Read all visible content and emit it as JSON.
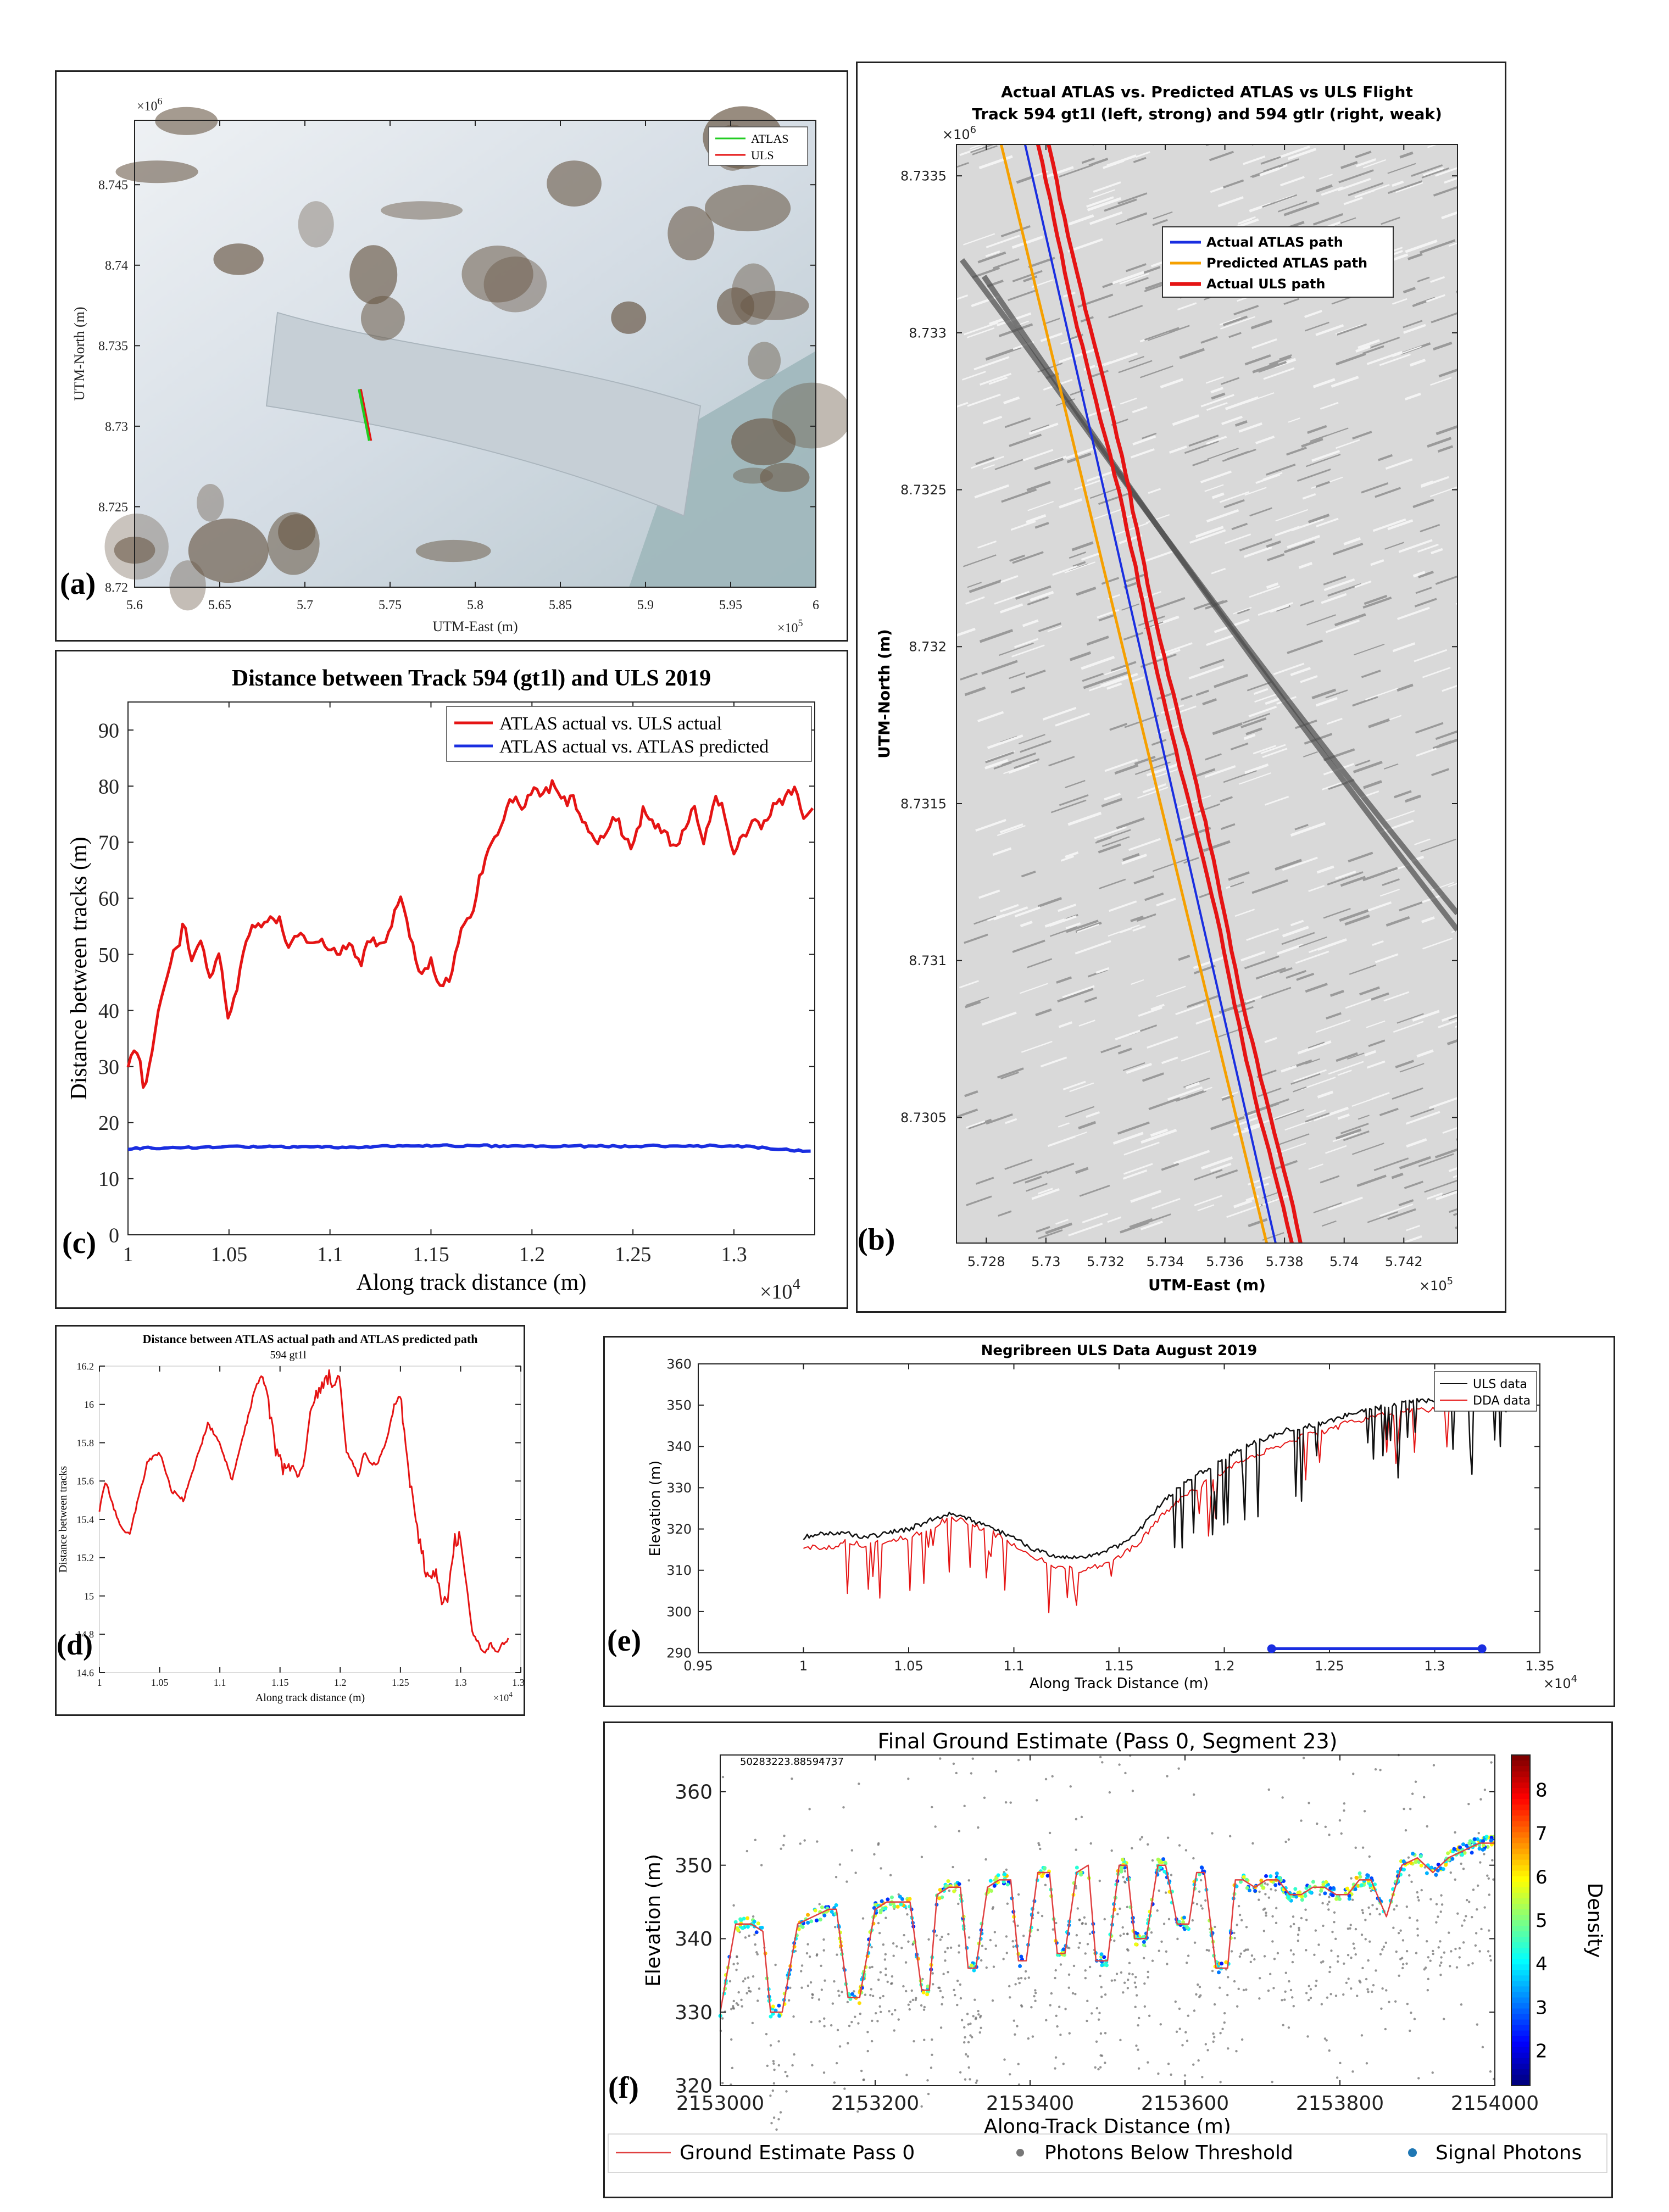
{
  "panel_labels": {
    "a": "(a)",
    "b": "(b)",
    "c": "(c)",
    "d": "(d)",
    "e": "(e)",
    "f": "(f)"
  },
  "colors": {
    "red": "#e51414",
    "blue": "#1a2ee0",
    "orange": "#f5a000",
    "green": "#22cc22",
    "black": "#111111"
  },
  "chart_data": [
    {
      "id": "a",
      "type": "map",
      "xlabel": "UTM-East (m)",
      "ylabel": "UTM-North (m)",
      "xexp": "×10",
      "xexp_power": "5",
      "yexp": "×10",
      "yexp_power": "6",
      "xlim": [
        5.6,
        6.0
      ],
      "ylim": [
        8.72,
        8.749
      ],
      "xticks": [
        "5.6",
        "5.65",
        "5.7",
        "5.75",
        "5.8",
        "5.85",
        "5.9",
        "5.95",
        "6"
      ],
      "yticks": [
        "8.72",
        "8.725",
        "8.73",
        "8.735",
        "8.74",
        "8.745"
      ],
      "ytick_vals": [
        8.72,
        8.725,
        8.73,
        8.735,
        8.74,
        8.745
      ],
      "legend": [
        "ATLAS",
        "ULS"
      ],
      "track": {
        "x": [
          5.732,
          5.738
        ],
        "y": [
          8.7323,
          8.7291
        ]
      }
    },
    {
      "id": "b",
      "type": "map",
      "title_lines": [
        "Actual ATLAS vs. Predicted ATLAS vs ULS Flight",
        "Track 594 gt1l (left, strong) and 594 gtlr (right, weak)"
      ],
      "xlabel": "UTM-East (m)",
      "ylabel": "UTM-North (m)",
      "xexp": "×10",
      "xexp_power": "5",
      "yexp": "×10",
      "yexp_power": "6",
      "xlim": [
        5.727,
        5.7438
      ],
      "ylim": [
        8.7301,
        8.7336
      ],
      "xticks": [
        "5.728",
        "5.73",
        "5.732",
        "5.734",
        "5.736",
        "5.738",
        "5.74",
        "5.742"
      ],
      "xtick_vals": [
        5.728,
        5.73,
        5.732,
        5.734,
        5.736,
        5.738,
        5.74,
        5.742
      ],
      "yticks": [
        "8.7305",
        "8.731",
        "8.7315",
        "8.732",
        "8.7325",
        "8.733",
        "8.7335"
      ],
      "ytick_vals": [
        8.7305,
        8.731,
        8.7315,
        8.732,
        8.7325,
        8.733,
        8.7335
      ],
      "legend": [
        "Actual ATLAS path",
        "Predicted ATLAS path",
        "Actual ULS path"
      ],
      "series": [
        {
          "name": "Predicted ATLAS path",
          "x0": 5.7285,
          "y0": 8.7336,
          "x1": 5.7374,
          "y1": 8.7301
        },
        {
          "name": "Actual ATLAS path",
          "x0": 5.7293,
          "y0": 8.7336,
          "x1": 5.7377,
          "y1": 8.7301
        },
        {
          "name": "Actual ULS path",
          "x0": 5.7297,
          "y0": 8.7336,
          "x1": 5.7382,
          "y1": 8.7301
        },
        {
          "name": "Actual ULS path",
          "x0": 5.7301,
          "y0": 8.7336,
          "x1": 5.7385,
          "y1": 8.7301
        }
      ]
    },
    {
      "id": "c",
      "type": "line",
      "title": "Distance between Track 594 (gt1l) and ULS 2019",
      "xlabel": "Along track distance (m)",
      "ylabel": "Distance between tracks (m)",
      "xexp": "×10",
      "xexp_power": "4",
      "xlim": [
        1.0,
        1.34
      ],
      "ylim": [
        0,
        95
      ],
      "xticks": [
        "1",
        "1.05",
        "1.1",
        "1.15",
        "1.2",
        "1.25",
        "1.3"
      ],
      "xtick_vals": [
        1.0,
        1.05,
        1.1,
        1.15,
        1.2,
        1.25,
        1.3
      ],
      "yticks": [
        "0",
        "10",
        "20",
        "30",
        "40",
        "50",
        "60",
        "70",
        "80",
        "90"
      ],
      "ytick_vals": [
        0,
        10,
        20,
        30,
        40,
        50,
        60,
        70,
        80,
        90
      ],
      "series": [
        {
          "name": "ATLAS actual vs. ULS actual",
          "x": [
            1.0,
            1.005,
            1.008,
            1.012,
            1.018,
            1.022,
            1.026,
            1.028,
            1.032,
            1.036,
            1.04,
            1.045,
            1.05,
            1.055,
            1.06,
            1.065,
            1.07,
            1.075,
            1.08,
            1.085,
            1.09,
            1.095,
            1.1,
            1.105,
            1.11,
            1.115,
            1.12,
            1.125,
            1.13,
            1.135,
            1.14,
            1.145,
            1.15,
            1.155,
            1.16,
            1.165,
            1.17,
            1.175,
            1.18,
            1.185,
            1.19,
            1.195,
            1.2,
            1.205,
            1.21,
            1.215,
            1.22,
            1.225,
            1.23,
            1.235,
            1.24,
            1.245,
            1.25,
            1.255,
            1.26,
            1.265,
            1.27,
            1.275,
            1.28,
            1.285,
            1.29,
            1.295,
            1.3,
            1.305,
            1.31,
            1.315,
            1.32,
            1.325,
            1.33,
            1.335,
            1.34
          ],
          "values": [
            31,
            33,
            26,
            33,
            45,
            50,
            53,
            56,
            48,
            53,
            46,
            50,
            38,
            46,
            54,
            55,
            57,
            56,
            51,
            54,
            52,
            52,
            51,
            50,
            52,
            48,
            53,
            52,
            54,
            61,
            52,
            47,
            49,
            43,
            47,
            54,
            57,
            65,
            70,
            74,
            78,
            76,
            79,
            78,
            80,
            77,
            78,
            74,
            70,
            71,
            75,
            72,
            69,
            76,
            73,
            72,
            69,
            72,
            77,
            70,
            78,
            76,
            68,
            71,
            74,
            73,
            77,
            78,
            80,
            74,
            77
          ]
        },
        {
          "name": "ATLAS actual vs. ATLAS predicted",
          "x": [
            1.0,
            1.05,
            1.1,
            1.15,
            1.2,
            1.25,
            1.3,
            1.34
          ],
          "values": [
            15.4,
            15.7,
            15.6,
            15.9,
            15.8,
            15.8,
            15.9,
            14.8
          ]
        }
      ]
    },
    {
      "id": "d",
      "type": "line",
      "title": "Distance between ATLAS actual path and ATLAS predicted path",
      "subtitle": "594 gt1l",
      "xlabel": "Along track distance (m)",
      "ylabel": "Distance between tracks",
      "xexp": "×10",
      "xexp_power": "4",
      "xlim": [
        1.0,
        1.35
      ],
      "ylim": [
        14.6,
        16.2
      ],
      "xticks": [
        "1",
        "1.05",
        "1.1",
        "1.15",
        "1.2",
        "1.25",
        "1.3",
        "1.35"
      ],
      "xtick_vals": [
        1.0,
        1.05,
        1.1,
        1.15,
        1.2,
        1.25,
        1.3,
        1.35
      ],
      "yticks": [
        "14.6",
        "14.8",
        "15",
        "15.2",
        "15.4",
        "15.6",
        "15.8",
        "16",
        "16.2"
      ],
      "ytick_vals": [
        14.6,
        14.8,
        15.0,
        15.2,
        15.4,
        15.6,
        15.8,
        16.0,
        16.2
      ],
      "series": [
        {
          "name": "594 gt1l",
          "x": [
            1.0,
            1.005,
            1.01,
            1.015,
            1.02,
            1.025,
            1.03,
            1.04,
            1.05,
            1.06,
            1.07,
            1.08,
            1.09,
            1.1,
            1.11,
            1.12,
            1.13,
            1.135,
            1.14,
            1.145,
            1.15,
            1.155,
            1.16,
            1.165,
            1.17,
            1.175,
            1.18,
            1.19,
            1.2,
            1.205,
            1.21,
            1.215,
            1.22,
            1.225,
            1.23,
            1.235,
            1.24,
            1.245,
            1.25,
            1.26,
            1.27,
            1.28,
            1.285,
            1.29,
            1.295,
            1.3,
            1.305,
            1.31,
            1.315,
            1.32,
            1.325,
            1.33,
            1.335,
            1.34
          ],
          "values": [
            15.45,
            15.6,
            15.5,
            15.4,
            15.35,
            15.32,
            15.45,
            15.7,
            15.75,
            15.55,
            15.5,
            15.7,
            15.9,
            15.8,
            15.6,
            15.85,
            16.1,
            16.15,
            16.05,
            15.8,
            15.7,
            15.65,
            15.7,
            15.62,
            15.7,
            15.95,
            16.05,
            16.15,
            16.1,
            15.75,
            15.7,
            15.62,
            15.75,
            15.7,
            15.68,
            15.75,
            15.85,
            16.0,
            16.05,
            15.5,
            15.15,
            15.1,
            14.95,
            15.0,
            15.28,
            15.3,
            15.05,
            14.8,
            14.75,
            14.7,
            14.75,
            14.7,
            14.75,
            14.78
          ]
        }
      ]
    },
    {
      "id": "e",
      "type": "line",
      "title": "Negribreen ULS Data August 2019",
      "xlabel": "Along Track Distance (m)",
      "ylabel": "Elevation (m)",
      "xexp": "×10",
      "xexp_power": "4",
      "xlim": [
        0.95,
        1.35
      ],
      "ylim": [
        290,
        360
      ],
      "xticks": [
        "0.95",
        "1",
        "1.05",
        "1.1",
        "1.15",
        "1.2",
        "1.25",
        "1.3",
        "1.35"
      ],
      "xtick_vals": [
        0.95,
        1.0,
        1.05,
        1.1,
        1.15,
        1.2,
        1.25,
        1.3,
        1.35
      ],
      "yticks": [
        "290",
        "300",
        "310",
        "320",
        "330",
        "340",
        "350",
        "360"
      ],
      "ytick_vals": [
        290,
        300,
        310,
        320,
        330,
        340,
        350,
        360
      ],
      "legend": [
        "ULS data",
        "DDA data"
      ],
      "series": [
        {
          "name": "ULS data",
          "x": [
            1.0,
            1.01,
            1.02,
            1.03,
            1.04,
            1.05,
            1.06,
            1.07,
            1.08,
            1.09,
            1.1,
            1.11,
            1.12,
            1.13,
            1.14,
            1.15,
            1.16,
            1.17,
            1.18,
            1.19,
            1.2,
            1.21,
            1.22,
            1.23,
            1.24,
            1.25,
            1.26,
            1.27,
            1.28,
            1.29,
            1.3,
            1.31,
            1.32,
            1.33,
            1.34
          ],
          "values": [
            318,
            319,
            319,
            318,
            319,
            320,
            322,
            324,
            322,
            320,
            318,
            315,
            313,
            313,
            314,
            316,
            320,
            326,
            331,
            334,
            337,
            340,
            342,
            344,
            345,
            346,
            348,
            349,
            350,
            351,
            351,
            352,
            353,
            355,
            358
          ]
        },
        {
          "name": "DDA data",
          "x": [
            1.0,
            1.01,
            1.02,
            1.03,
            1.04,
            1.05,
            1.06,
            1.07,
            1.08,
            1.09,
            1.1,
            1.11,
            1.12,
            1.13,
            1.14,
            1.15,
            1.16,
            1.17,
            1.18,
            1.19,
            1.2,
            1.21,
            1.22,
            1.23,
            1.24,
            1.25,
            1.26,
            1.27,
            1.28,
            1.29,
            1.3,
            1.31,
            1.32
          ],
          "values": [
            316,
            315,
            317,
            316,
            317,
            318,
            320,
            323,
            321,
            319,
            316,
            313,
            311,
            310,
            311,
            313,
            317,
            323,
            328,
            331,
            334,
            337,
            339,
            341,
            343,
            344,
            346,
            347,
            348,
            349,
            349,
            350,
            351
          ]
        },
        {
          "name": "segment",
          "x": [
            1.2225,
            1.3225
          ],
          "values": [
            291,
            291
          ]
        }
      ]
    },
    {
      "id": "f",
      "type": "scatter",
      "title": "Final Ground Estimate (Pass 0, Segment 23)",
      "corner_text": "50283223.88594737",
      "xlabel": "Along-Track Distance (m)",
      "ylabel": "Elevation (m)",
      "colorbar_label": "Density",
      "xlim": [
        2153000,
        2154000
      ],
      "ylim": [
        320,
        365
      ],
      "xticks": [
        "2153000",
        "2153200",
        "2153400",
        "2153600",
        "2153800",
        "2154000"
      ],
      "xtick_vals": [
        2153000,
        2153200,
        2153400,
        2153600,
        2153800,
        2154000
      ],
      "yticks": [
        "320",
        "330",
        "340",
        "350",
        "360"
      ],
      "ytick_vals": [
        320,
        330,
        340,
        350,
        360
      ],
      "cticks": [
        "2",
        "3",
        "4",
        "5",
        "6",
        "7",
        "8"
      ],
      "ctick_vals": [
        2,
        3,
        4,
        5,
        6,
        7,
        8
      ],
      "clim": [
        1.2,
        8.8
      ],
      "legend": [
        "Ground Estimate Pass 0",
        "Photons Below Threshold",
        "Signal Photons"
      ],
      "ground": {
        "x": [
          2153000,
          2153020,
          2153040,
          2153055,
          2153065,
          2153080,
          2153100,
          2153120,
          2153140,
          2153150,
          2153165,
          2153180,
          2153200,
          2153215,
          2153230,
          2153245,
          2153260,
          2153270,
          2153280,
          2153295,
          2153310,
          2153320,
          2153330,
          2153345,
          2153360,
          2153375,
          2153385,
          2153395,
          2153410,
          2153425,
          2153435,
          2153445,
          2153460,
          2153475,
          2153485,
          2153500,
          2153515,
          2153525,
          2153535,
          2153550,
          2153565,
          2153575,
          2153590,
          2153605,
          2153615,
          2153625,
          2153640,
          2153655,
          2153665,
          2153675,
          2153690,
          2153705,
          2153720,
          2153735,
          2153750,
          2153765,
          2153780,
          2153795,
          2153810,
          2153825,
          2153840,
          2153860,
          2153880,
          2153900,
          2153920,
          2153940,
          2153960,
          2153980,
          2154000
        ],
        "values": [
          330,
          342,
          342,
          341,
          330,
          330,
          342,
          343,
          344,
          344,
          332,
          332,
          344,
          345,
          345,
          345,
          333,
          333,
          346,
          347,
          347,
          336,
          336,
          347,
          348,
          348,
          337,
          337,
          349,
          349,
          338,
          338,
          349,
          350,
          337,
          337,
          350,
          350,
          340,
          340,
          350,
          350,
          342,
          342,
          349,
          349,
          336,
          336,
          348,
          348,
          347,
          348,
          348,
          346,
          346,
          347,
          347,
          346,
          346,
          348,
          348,
          343,
          350,
          351,
          349,
          351,
          352,
          353,
          353
        ]
      }
    }
  ]
}
